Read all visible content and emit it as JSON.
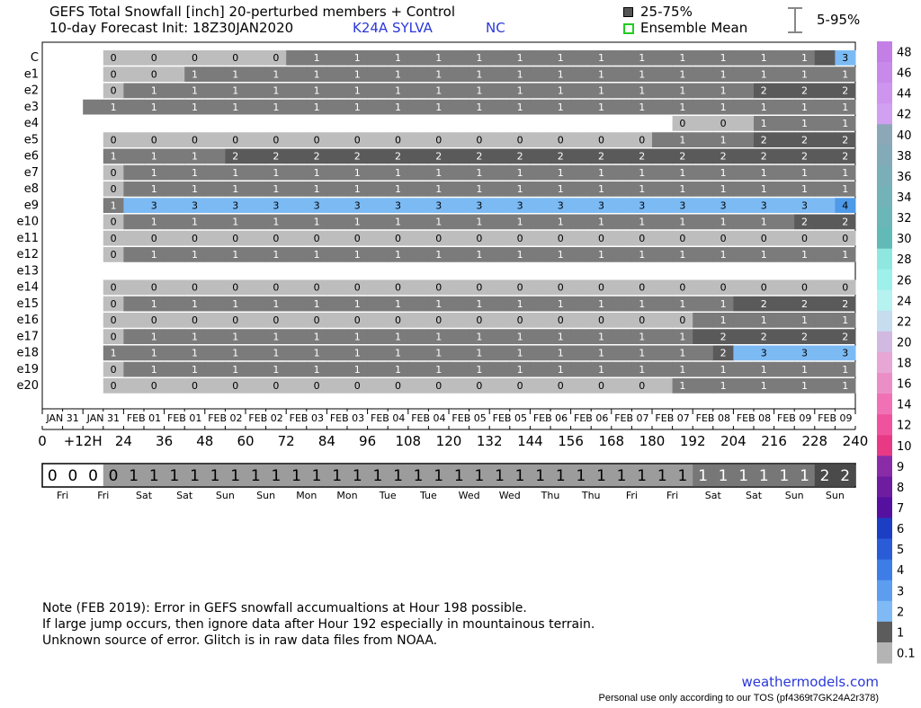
{
  "header": {
    "title_line1": "GEFS Total Snowfall [inch]  20-perturbed members + Control",
    "title_line2": "10-day Forecast Init: 18Z30JAN2020",
    "station": "K24A  SYLVA",
    "state": "NC",
    "legend_iqr": "25-75%",
    "legend_mean": "Ensemble Mean",
    "legend_range": "5-95%"
  },
  "chart_data": {
    "type": "heatmap",
    "title": "GEFS Total Snowfall [inch]  20-perturbed members + Control",
    "members": [
      "C",
      "e1",
      "e2",
      "e3",
      "e4",
      "e5",
      "e6",
      "e7",
      "e8",
      "e9",
      "e10",
      "e11",
      "e12",
      "e13",
      "e14",
      "e15",
      "e16",
      "e17",
      "e18",
      "e19",
      "e20"
    ],
    "hours": [
      6,
      12,
      18,
      24,
      30,
      36,
      42,
      48,
      54,
      60,
      66,
      72,
      78,
      84,
      90,
      96,
      102,
      108,
      114,
      120,
      126,
      132,
      138,
      144,
      150,
      156,
      162,
      168,
      174,
      180,
      186,
      192,
      198,
      204,
      210,
      216,
      222,
      228,
      234,
      240
    ],
    "values": {
      "C": [
        null,
        null,
        null,
        0,
        0,
        0,
        0,
        0,
        0,
        0,
        0,
        0,
        1,
        1,
        1,
        1,
        1,
        1,
        1,
        1,
        1,
        1,
        1,
        1,
        1,
        1,
        1,
        1,
        1,
        1,
        1,
        1,
        1,
        1,
        1,
        1,
        1,
        1,
        2,
        3
      ],
      "e1": [
        null,
        null,
        null,
        0,
        0,
        0,
        0,
        1,
        1,
        1,
        1,
        1,
        1,
        1,
        1,
        1,
        1,
        1,
        1,
        1,
        1,
        1,
        1,
        1,
        1,
        1,
        1,
        1,
        1,
        1,
        1,
        1,
        1,
        1,
        1,
        1,
        1,
        1,
        1,
        1
      ],
      "e2": [
        null,
        null,
        null,
        0,
        1,
        1,
        1,
        1,
        1,
        1,
        1,
        1,
        1,
        1,
        1,
        1,
        1,
        1,
        1,
        1,
        1,
        1,
        1,
        1,
        1,
        1,
        1,
        1,
        1,
        1,
        1,
        1,
        1,
        1,
        1,
        2,
        2,
        2,
        2,
        2
      ],
      "e3": [
        null,
        null,
        1,
        1,
        1,
        1,
        1,
        1,
        1,
        1,
        1,
        1,
        1,
        1,
        1,
        1,
        1,
        1,
        1,
        1,
        1,
        1,
        1,
        1,
        1,
        1,
        1,
        1,
        1,
        1,
        1,
        1,
        1,
        1,
        1,
        1,
        1,
        1,
        1,
        1
      ],
      "e4": [
        null,
        null,
        null,
        null,
        null,
        null,
        null,
        null,
        null,
        null,
        null,
        null,
        null,
        null,
        null,
        null,
        null,
        null,
        null,
        null,
        null,
        null,
        null,
        null,
        null,
        null,
        null,
        null,
        null,
        null,
        null,
        0,
        0,
        0,
        0,
        1,
        1,
        1,
        1,
        1
      ],
      "e5": [
        null,
        null,
        null,
        0,
        0,
        0,
        0,
        0,
        0,
        0,
        0,
        0,
        0,
        0,
        0,
        0,
        0,
        0,
        0,
        0,
        0,
        0,
        0,
        0,
        0,
        0,
        0,
        0,
        0,
        0,
        1,
        1,
        1,
        1,
        1,
        2,
        2,
        2,
        2,
        2
      ],
      "e6": [
        null,
        null,
        null,
        1,
        1,
        1,
        1,
        1,
        1,
        2,
        2,
        2,
        2,
        2,
        2,
        2,
        2,
        2,
        2,
        2,
        2,
        2,
        2,
        2,
        2,
        2,
        2,
        2,
        2,
        2,
        2,
        2,
        2,
        2,
        2,
        2,
        2,
        2,
        2,
        2
      ],
      "e7": [
        null,
        null,
        null,
        0,
        1,
        1,
        1,
        1,
        1,
        1,
        1,
        1,
        1,
        1,
        1,
        1,
        1,
        1,
        1,
        1,
        1,
        1,
        1,
        1,
        1,
        1,
        1,
        1,
        1,
        1,
        1,
        1,
        1,
        1,
        1,
        1,
        1,
        1,
        1,
        1
      ],
      "e8": [
        null,
        null,
        null,
        0,
        1,
        1,
        1,
        1,
        1,
        1,
        1,
        1,
        1,
        1,
        1,
        1,
        1,
        1,
        1,
        1,
        1,
        1,
        1,
        1,
        1,
        1,
        1,
        1,
        1,
        1,
        1,
        1,
        1,
        1,
        1,
        1,
        1,
        1,
        1,
        1
      ],
      "e9": [
        null,
        null,
        null,
        1,
        3,
        3,
        3,
        3,
        3,
        3,
        3,
        3,
        3,
        3,
        3,
        3,
        3,
        3,
        3,
        3,
        3,
        3,
        3,
        3,
        3,
        3,
        3,
        3,
        3,
        3,
        3,
        3,
        3,
        3,
        3,
        3,
        3,
        3,
        3,
        4
      ],
      "e10": [
        null,
        null,
        null,
        0,
        1,
        1,
        1,
        1,
        1,
        1,
        1,
        1,
        1,
        1,
        1,
        1,
        1,
        1,
        1,
        1,
        1,
        1,
        1,
        1,
        1,
        1,
        1,
        1,
        1,
        1,
        1,
        1,
        1,
        1,
        1,
        1,
        1,
        2,
        2,
        2
      ],
      "e11": [
        null,
        null,
        null,
        0,
        0,
        0,
        0,
        0,
        0,
        0,
        0,
        0,
        0,
        0,
        0,
        0,
        0,
        0,
        0,
        0,
        0,
        0,
        0,
        0,
        0,
        0,
        0,
        0,
        0,
        0,
        0,
        0,
        0,
        0,
        0,
        0,
        0,
        0,
        0,
        0
      ],
      "e12": [
        null,
        null,
        null,
        0,
        1,
        1,
        1,
        1,
        1,
        1,
        1,
        1,
        1,
        1,
        1,
        1,
        1,
        1,
        1,
        1,
        1,
        1,
        1,
        1,
        1,
        1,
        1,
        1,
        1,
        1,
        1,
        1,
        1,
        1,
        1,
        1,
        1,
        1,
        1,
        1
      ],
      "e13": [
        null,
        null,
        null,
        null,
        null,
        null,
        null,
        null,
        null,
        null,
        null,
        null,
        null,
        null,
        null,
        null,
        null,
        null,
        null,
        null,
        null,
        null,
        null,
        null,
        null,
        null,
        null,
        null,
        null,
        null,
        null,
        null,
        null,
        null,
        null,
        null,
        null,
        null,
        null,
        null
      ],
      "e14": [
        null,
        null,
        null,
        0,
        0,
        0,
        0,
        0,
        0,
        0,
        0,
        0,
        0,
        0,
        0,
        0,
        0,
        0,
        0,
        0,
        0,
        0,
        0,
        0,
        0,
        0,
        0,
        0,
        0,
        0,
        0,
        0,
        0,
        0,
        0,
        0,
        0,
        0,
        0,
        0
      ],
      "e15": [
        null,
        null,
        null,
        0,
        1,
        1,
        1,
        1,
        1,
        1,
        1,
        1,
        1,
        1,
        1,
        1,
        1,
        1,
        1,
        1,
        1,
        1,
        1,
        1,
        1,
        1,
        1,
        1,
        1,
        1,
        1,
        1,
        1,
        1,
        2,
        2,
        2,
        2,
        2,
        2
      ],
      "e16": [
        null,
        null,
        null,
        0,
        0,
        0,
        0,
        0,
        0,
        0,
        0,
        0,
        0,
        0,
        0,
        0,
        0,
        0,
        0,
        0,
        0,
        0,
        0,
        0,
        0,
        0,
        0,
        0,
        0,
        0,
        0,
        0,
        1,
        1,
        1,
        1,
        1,
        1,
        1,
        1
      ],
      "e17": [
        null,
        null,
        null,
        0,
        1,
        1,
        1,
        1,
        1,
        1,
        1,
        1,
        1,
        1,
        1,
        1,
        1,
        1,
        1,
        1,
        1,
        1,
        1,
        1,
        1,
        1,
        1,
        1,
        1,
        1,
        1,
        1,
        2,
        2,
        2,
        2,
        2,
        2,
        2,
        2
      ],
      "e18": [
        null,
        null,
        null,
        1,
        1,
        1,
        1,
        1,
        1,
        1,
        1,
        1,
        1,
        1,
        1,
        1,
        1,
        1,
        1,
        1,
        1,
        1,
        1,
        1,
        1,
        1,
        1,
        1,
        1,
        1,
        1,
        1,
        1,
        2,
        3,
        3,
        3,
        3,
        3,
        3
      ],
      "e19": [
        null,
        null,
        null,
        0,
        1,
        1,
        1,
        1,
        1,
        1,
        1,
        1,
        1,
        1,
        1,
        1,
        1,
        1,
        1,
        1,
        1,
        1,
        1,
        1,
        1,
        1,
        1,
        1,
        1,
        1,
        1,
        1,
        1,
        1,
        1,
        1,
        1,
        1,
        1,
        1
      ],
      "e20": [
        null,
        null,
        null,
        0,
        0,
        0,
        0,
        0,
        0,
        0,
        0,
        0,
        0,
        0,
        0,
        0,
        0,
        0,
        0,
        0,
        0,
        0,
        0,
        0,
        0,
        0,
        0,
        0,
        0,
        0,
        0,
        1,
        1,
        1,
        1,
        1,
        1,
        1,
        1,
        1
      ]
    },
    "date_labels": [
      "JAN 31",
      "JAN 31",
      "FEB 01",
      "FEB 01",
      "FEB 02",
      "FEB 02",
      "FEB 03",
      "FEB 03",
      "FEB 04",
      "FEB 04",
      "FEB 05",
      "FEB 05",
      "FEB 06",
      "FEB 06",
      "FEB 07",
      "FEB 07",
      "FEB 08",
      "FEB 08",
      "FEB 09",
      "FEB 09"
    ],
    "hour_labels": [
      "0",
      "+12H",
      "24",
      "36",
      "48",
      "60",
      "72",
      "84",
      "96",
      "108",
      "120",
      "132",
      "144",
      "156",
      "168",
      "180",
      "192",
      "204",
      "216",
      "228",
      "240"
    ],
    "mean_values": [
      0,
      0,
      0,
      0,
      1,
      1,
      1,
      1,
      1,
      1,
      1,
      1,
      1,
      1,
      1,
      1,
      1,
      1,
      1,
      1,
      1,
      1,
      1,
      1,
      1,
      1,
      1,
      1,
      1,
      1,
      1,
      1,
      1,
      1,
      1,
      1,
      1,
      1,
      2,
      2
    ],
    "day_labels": [
      "Fri",
      "Fri",
      "Sat",
      "Sat",
      "Sun",
      "Sun",
      "Mon",
      "Mon",
      "Tue",
      "Tue",
      "Wed",
      "Wed",
      "Thu",
      "Thu",
      "Fri",
      "Fri",
      "Sat",
      "Sat",
      "Sun",
      "Sun"
    ],
    "colorbar_labels": [
      "48",
      "46",
      "44",
      "42",
      "40",
      "38",
      "36",
      "34",
      "32",
      "30",
      "28",
      "26",
      "24",
      "22",
      "20",
      "18",
      "16",
      "14",
      "12",
      "10",
      "9",
      "8",
      "7",
      "6",
      "5",
      "4",
      "3",
      "2",
      "1",
      "0.1"
    ],
    "colorbar_colors": [
      "#c47fe6",
      "#c88aea",
      "#cd95ee",
      "#d1a0f1",
      "#8ca7b8",
      "#83aab8",
      "#7aaeb8",
      "#72b2b8",
      "#6ab6b8",
      "#62bab8",
      "#8ee8e0",
      "#9ef0ea",
      "#b6f3f0",
      "#c6dcef",
      "#d2b9e2",
      "#e7a6d6",
      "#eb8ec8",
      "#f071b6",
      "#f0539e",
      "#e83a84",
      "#8a2ca8",
      "#6e1ca0",
      "#5510a0",
      "#1c3ec4",
      "#2a5cd8",
      "#3f7de6",
      "#5c9df0",
      "#7fbaf6",
      "#5c5c5c",
      "#b4b4b4"
    ]
  },
  "notes": {
    "line1": "Note (FEB 2019): Error in GEFS snowfall accumualtions at Hour 198 possible.",
    "line2": "If large jump occurs, then ignore data after Hour 192 especially in mountainous terrain.",
    "line3": "Unknown source of error.  Glitch is in raw data files from NOAA."
  },
  "footer": {
    "site": "weathermodels.com",
    "tos": "Personal use only according to our TOS (pf4369t7GK24A2r378)"
  },
  "colors": {
    "v0": "#bdbdbd",
    "v1": "#7b7b7b",
    "v2": "#5a5a5a",
    "v3": "#7cbaf4",
    "v4": "#4e9ae8",
    "text_blue": "#2a38d8"
  }
}
